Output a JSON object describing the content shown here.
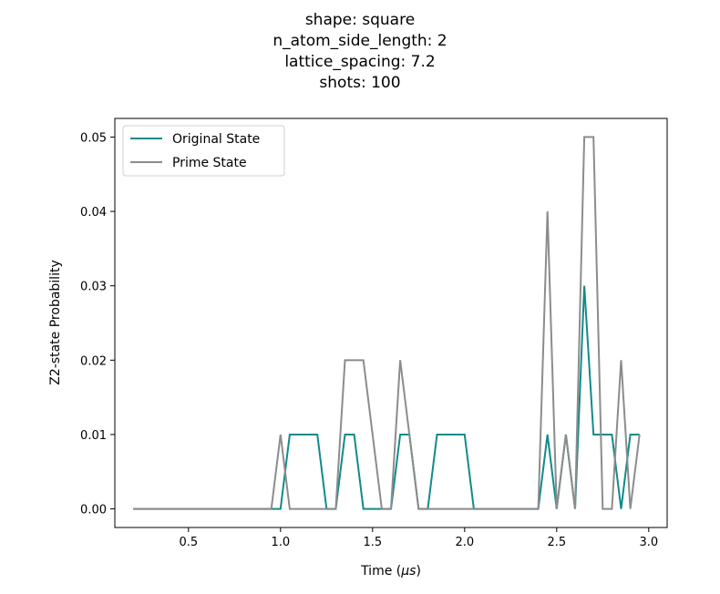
{
  "chart_data": {
    "type": "line",
    "title_lines": [
      "shape: square",
      "n_atom_side_length: 2",
      "lattice_spacing: 7.2",
      "shots: 100"
    ],
    "xlabel_prefix": "Time (",
    "xlabel_unit": "μs",
    "xlabel_suffix": ")",
    "ylabel": "Z2-state Probability",
    "xlim": [
      0.1,
      3.1
    ],
    "ylim": [
      -0.0025,
      0.0525
    ],
    "xticks": [
      0.5,
      1.0,
      1.5,
      2.0,
      2.5,
      3.0
    ],
    "xtick_labels": [
      "0.5",
      "1.0",
      "1.5",
      "2.0",
      "2.5",
      "3.0"
    ],
    "yticks": [
      0.0,
      0.01,
      0.02,
      0.03,
      0.04,
      0.05
    ],
    "ytick_labels": [
      "0.00",
      "0.01",
      "0.02",
      "0.03",
      "0.04",
      "0.05"
    ],
    "grid": false,
    "legend_position": "top-left",
    "x": [
      0.2,
      0.25,
      0.3,
      0.35,
      0.4,
      0.45,
      0.5,
      0.55,
      0.6,
      0.65,
      0.7,
      0.75,
      0.8,
      0.85,
      0.9,
      0.95,
      1.0,
      1.05,
      1.1,
      1.15,
      1.2,
      1.25,
      1.3,
      1.35,
      1.4,
      1.45,
      1.5,
      1.55,
      1.6,
      1.65,
      1.7,
      1.75,
      1.8,
      1.85,
      1.9,
      1.95,
      2.0,
      2.05,
      2.1,
      2.15,
      2.2,
      2.25,
      2.3,
      2.35,
      2.4,
      2.45,
      2.5,
      2.55,
      2.6,
      2.65,
      2.7,
      2.75,
      2.8,
      2.85,
      2.9,
      2.95
    ],
    "series": [
      {
        "name": "Original State",
        "color": "#138a8a",
        "values": [
          0,
          0,
          0,
          0,
          0,
          0,
          0,
          0,
          0,
          0,
          0,
          0,
          0,
          0,
          0,
          0,
          0,
          0.01,
          0.01,
          0.01,
          0.01,
          0,
          0,
          0.01,
          0.01,
          0,
          0,
          0,
          0,
          0.01,
          0.01,
          0,
          0,
          0.01,
          0.01,
          0.01,
          0.01,
          0,
          0,
          0,
          0,
          0,
          0,
          0,
          0,
          0.01,
          0,
          0.01,
          0,
          0.03,
          0.01,
          0.01,
          0.01,
          0,
          0.01,
          0.01
        ]
      },
      {
        "name": "Prime State",
        "color": "#8c8c8c",
        "values": [
          0,
          0,
          0,
          0,
          0,
          0,
          0,
          0,
          0,
          0,
          0,
          0,
          0,
          0,
          0,
          0,
          0.01,
          0,
          0,
          0,
          0,
          0,
          0,
          0.02,
          0.02,
          0.02,
          0.01,
          0,
          0,
          0.02,
          0.01,
          0,
          0,
          0,
          0,
          0,
          0,
          0,
          0,
          0,
          0,
          0,
          0,
          0,
          0,
          0.04,
          0,
          0.01,
          0,
          0.05,
          0.05,
          0,
          0,
          0.02,
          0,
          0.01
        ]
      }
    ]
  }
}
